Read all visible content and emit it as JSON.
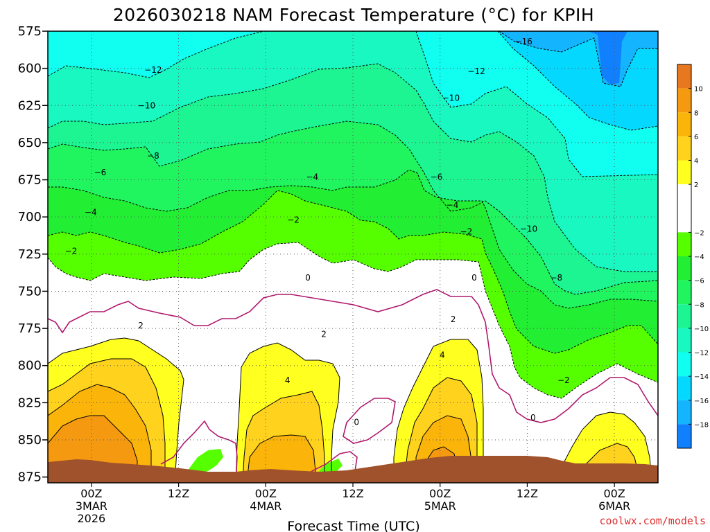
{
  "title": "2026030218 NAM Forecast Temperature (°C) for KPIH",
  "credit": "coolwx.com/models",
  "chart_data": {
    "type": "time-height contour",
    "title": "2026030218 NAM Forecast Temperature (°C) for KPIH",
    "xlabel": "Forecast Time (UTC)",
    "ylabel": "",
    "y_ticks": [
      575,
      600,
      625,
      650,
      675,
      700,
      725,
      750,
      775,
      800,
      825,
      850,
      875
    ],
    "ylim": [
      875,
      575
    ],
    "x_ticks": [
      {
        "label": "00Z",
        "sub": "3MAR",
        "sub2": "2026",
        "hour": 6
      },
      {
        "label": "12Z",
        "sub": "",
        "sub2": "",
        "hour": 18
      },
      {
        "label": "00Z",
        "sub": "4MAR",
        "sub2": "",
        "hour": 30
      },
      {
        "label": "12Z",
        "sub": "",
        "sub2": "",
        "hour": 42
      },
      {
        "label": "00Z",
        "sub": "5MAR",
        "sub2": "",
        "hour": 54
      },
      {
        "label": "12Z",
        "sub": "",
        "sub2": "",
        "hour": 66
      },
      {
        "label": "00Z",
        "sub": "6MAR",
        "sub2": "",
        "hour": 78
      }
    ],
    "xlim_hours": [
      0,
      84
    ],
    "grid": true,
    "contour_interval_c": 2,
    "zero_line_color": "#b0186e",
    "colorbar": {
      "labels": [
        10,
        8,
        6,
        4,
        2,
        -2,
        -4,
        -6,
        -8,
        -10,
        -12,
        -14,
        -16,
        -18
      ],
      "bands": [
        {
          "range": [
            10,
            12
          ],
          "color": "#e87820"
        },
        {
          "range": [
            8,
            10
          ],
          "color": "#f59a10"
        },
        {
          "range": [
            6,
            8
          ],
          "color": "#fbb40a"
        },
        {
          "range": [
            4,
            6
          ],
          "color": "#ffd21e"
        },
        {
          "range": [
            2,
            4
          ],
          "color": "#ffff20"
        },
        {
          "range": [
            -2,
            2
          ],
          "color": "#ffffff"
        },
        {
          "range": [
            -4,
            -2
          ],
          "color": "#55ff00"
        },
        {
          "range": [
            -6,
            -4
          ],
          "color": "#22ee33"
        },
        {
          "range": [
            -8,
            -6
          ],
          "color": "#20f560"
        },
        {
          "range": [
            -10,
            -8
          ],
          "color": "#1cf592"
        },
        {
          "range": [
            -12,
            -10
          ],
          "color": "#18f8c0"
        },
        {
          "range": [
            -14,
            -12
          ],
          "color": "#10fff0"
        },
        {
          "range": [
            -16,
            -14
          ],
          "color": "#04d8ff"
        },
        {
          "range": [
            -18,
            -16
          ],
          "color": "#14b4ff"
        },
        {
          "range": [
            -20,
            -18
          ],
          "color": "#1080ff"
        }
      ]
    },
    "contour_labels": [
      {
        "text": "-16",
        "hour": 65.5,
        "p": 582
      },
      {
        "text": "-12",
        "hour": 14.5,
        "p": 601
      },
      {
        "text": "-12",
        "hour": 59,
        "p": 602
      },
      {
        "text": "-10",
        "hour": 13.6,
        "p": 625
      },
      {
        "text": "-10",
        "hour": 55.5,
        "p": 620
      },
      {
        "text": "-8",
        "hour": 14.5,
        "p": 659
      },
      {
        "text": "-6",
        "hour": 7.2,
        "p": 670
      },
      {
        "text": "-6",
        "hour": 53.5,
        "p": 673
      },
      {
        "text": "-4",
        "hour": 5.9,
        "p": 697
      },
      {
        "text": "-4",
        "hour": 36.4,
        "p": 673
      },
      {
        "text": "-4",
        "hour": 55.7,
        "p": 692
      },
      {
        "text": "-2",
        "hour": 3.2,
        "p": 723
      },
      {
        "text": "-2",
        "hour": 33.8,
        "p": 702
      },
      {
        "text": "-2",
        "hour": 57.6,
        "p": 710
      },
      {
        "text": "-10",
        "hour": 66.2,
        "p": 708
      },
      {
        "text": "-8",
        "hour": 70,
        "p": 741
      },
      {
        "text": "-2",
        "hour": 71,
        "p": 810
      },
      {
        "text": "0",
        "hour": 35.8,
        "p": 741
      },
      {
        "text": "0",
        "hour": 58.7,
        "p": 741
      },
      {
        "text": "0",
        "hour": 42.5,
        "p": 838
      },
      {
        "text": "0",
        "hour": 66.8,
        "p": 835
      },
      {
        "text": "2",
        "hour": 12.8,
        "p": 773
      },
      {
        "text": "2",
        "hour": 38,
        "p": 779
      },
      {
        "text": "2",
        "hour": 55.8,
        "p": 769
      },
      {
        "text": "4",
        "hour": 33,
        "p": 810
      },
      {
        "text": "4",
        "hour": 54.3,
        "p": 793
      }
    ]
  }
}
